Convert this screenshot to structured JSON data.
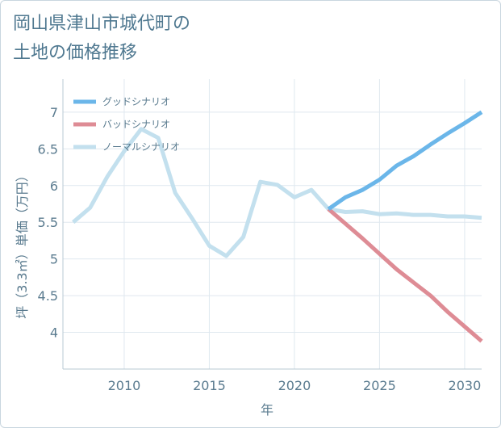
{
  "title": {
    "line1": "岡山県津山市城代町の",
    "line2": "土地の価格推移"
  },
  "chart_data": {
    "type": "line",
    "xlabel": "年",
    "ylabel": "坪（3.3㎡）単価（万円）",
    "xlim": [
      2006.4,
      2031
    ],
    "ylim": [
      3.5,
      7.45
    ],
    "xticks": [
      2010,
      2015,
      2020,
      2025,
      2030
    ],
    "yticks": [
      4,
      4.5,
      5,
      5.5,
      6,
      6.5,
      7
    ],
    "ytick_labels": [
      "4",
      "4.5",
      "5",
      "5.5",
      "6",
      "6.5",
      "7"
    ],
    "grid": true,
    "legend_position": "top-left",
    "series": [
      {
        "name": "グッドシナリオ",
        "color": "#6bb6e9",
        "x": [
          2022,
          2023,
          2024,
          2025,
          2026,
          2027,
          2028,
          2029,
          2030,
          2031
        ],
        "y": [
          5.68,
          5.84,
          5.94,
          6.08,
          6.27,
          6.4,
          6.56,
          6.71,
          6.85,
          7.0
        ]
      },
      {
        "name": "バッドシナリオ",
        "color": "#de8c95",
        "x": [
          2022,
          2023,
          2024,
          2025,
          2026,
          2027,
          2028,
          2029,
          2030,
          2031
        ],
        "y": [
          5.68,
          5.48,
          5.28,
          5.07,
          4.86,
          4.68,
          4.5,
          4.28,
          4.08,
          3.88
        ]
      },
      {
        "name": "ノーマルシナリオ",
        "color": "#c3e0ee",
        "x": [
          2007,
          2008,
          2009,
          2010,
          2011,
          2012,
          2013,
          2014,
          2015,
          2016,
          2017,
          2018,
          2019,
          2020,
          2021,
          2022,
          2023,
          2024,
          2025,
          2026,
          2027,
          2028,
          2029,
          2030,
          2031
        ],
        "y": [
          5.5,
          5.7,
          6.12,
          6.47,
          6.77,
          6.65,
          5.9,
          5.55,
          5.18,
          5.04,
          5.3,
          6.05,
          6.01,
          5.84,
          5.94,
          5.68,
          5.64,
          5.65,
          5.61,
          5.62,
          5.6,
          5.6,
          5.58,
          5.58,
          5.56
        ]
      }
    ]
  }
}
